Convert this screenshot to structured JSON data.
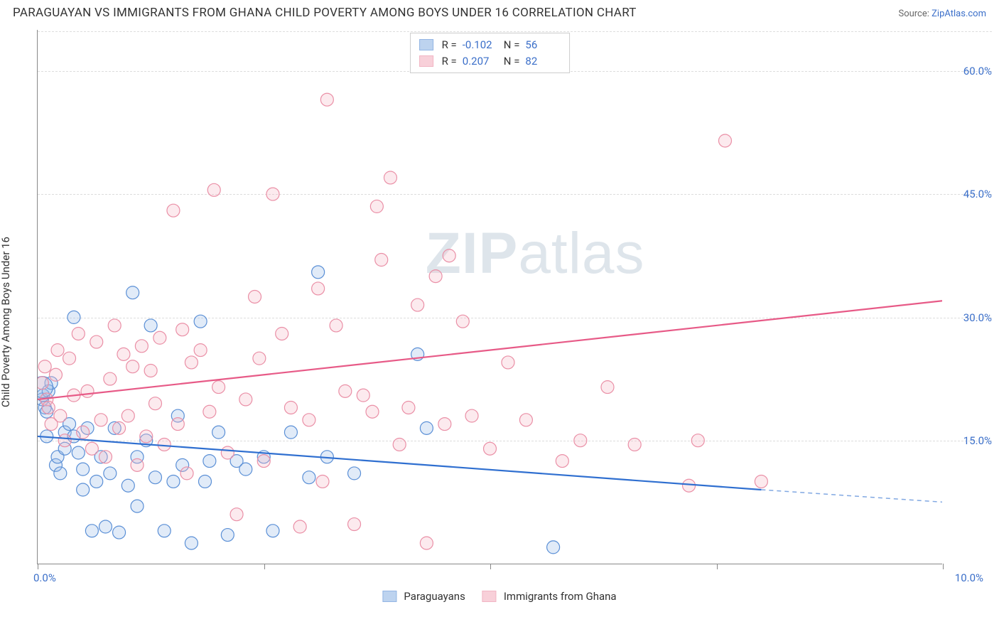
{
  "title": "PARAGUAYAN VS IMMIGRANTS FROM GHANA CHILD POVERTY AMONG BOYS UNDER 16 CORRELATION CHART",
  "source_prefix": "Source: ",
  "source_name": "ZipAtlas.com",
  "y_axis_label": "Child Poverty Among Boys Under 16",
  "watermark_bold": "ZIP",
  "watermark_rest": "atlas",
  "chart": {
    "type": "scatter",
    "xlim": [
      0,
      10
    ],
    "ylim": [
      0,
      65
    ],
    "x_ticks": [
      0,
      2.5,
      5,
      7.5,
      10
    ],
    "x_tick_labels": {
      "0": "0.0%",
      "10": "10.0%"
    },
    "y_ticks": [
      15,
      30,
      45,
      60
    ],
    "y_tick_labels": [
      "15.0%",
      "30.0%",
      "45.0%",
      "60.0%"
    ],
    "grid_color": "#dddddd",
    "axis_color": "#888888",
    "background_color": "#ffffff",
    "marker_radius": 9,
    "marker_stroke_width": 1.2,
    "marker_fill_opacity": 0.3,
    "trend_line_width": 2.2,
    "series": [
      {
        "name": "Paraguayans",
        "color_fill": "#9bbce8",
        "color_stroke": "#5a8fd6",
        "trend_color": "#2f6fd0",
        "R": "-0.102",
        "N": "56",
        "trend": {
          "x1": 0,
          "y1": 15.5,
          "x2": 8.0,
          "y2": 9.0,
          "dashed_x2": 10,
          "dashed_y2": 7.5
        },
        "points": [
          [
            0.05,
            20.0
          ],
          [
            0.06,
            20.5
          ],
          [
            0.08,
            19.0
          ],
          [
            0.1,
            15.5
          ],
          [
            0.1,
            18.5
          ],
          [
            0.12,
            21.0
          ],
          [
            0.15,
            22.0
          ],
          [
            0.2,
            12.0
          ],
          [
            0.22,
            13.0
          ],
          [
            0.25,
            11.0
          ],
          [
            0.3,
            16.0
          ],
          [
            0.3,
            14.0
          ],
          [
            0.35,
            17.0
          ],
          [
            0.4,
            30.0
          ],
          [
            0.4,
            15.5
          ],
          [
            0.45,
            13.5
          ],
          [
            0.5,
            9.0
          ],
          [
            0.5,
            11.5
          ],
          [
            0.55,
            16.5
          ],
          [
            0.6,
            4.0
          ],
          [
            0.65,
            10.0
          ],
          [
            0.7,
            13.0
          ],
          [
            0.75,
            4.5
          ],
          [
            0.8,
            11.0
          ],
          [
            0.85,
            16.5
          ],
          [
            0.9,
            3.8
          ],
          [
            1.0,
            9.5
          ],
          [
            1.05,
            33.0
          ],
          [
            1.1,
            13.0
          ],
          [
            1.1,
            7.0
          ],
          [
            1.2,
            15.0
          ],
          [
            1.25,
            29.0
          ],
          [
            1.3,
            10.5
          ],
          [
            1.4,
            4.0
          ],
          [
            1.5,
            10.0
          ],
          [
            1.55,
            18.0
          ],
          [
            1.6,
            12.0
          ],
          [
            1.7,
            2.5
          ],
          [
            1.8,
            29.5
          ],
          [
            1.85,
            10.0
          ],
          [
            1.9,
            12.5
          ],
          [
            2.0,
            16.0
          ],
          [
            2.1,
            3.5
          ],
          [
            2.2,
            12.5
          ],
          [
            2.3,
            11.5
          ],
          [
            2.5,
            13.0
          ],
          [
            2.6,
            4.0
          ],
          [
            2.8,
            16.0
          ],
          [
            3.0,
            10.5
          ],
          [
            3.1,
            35.5
          ],
          [
            3.2,
            13.0
          ],
          [
            3.5,
            11.0
          ],
          [
            4.2,
            25.5
          ],
          [
            4.3,
            16.5
          ],
          [
            5.7,
            2.0
          ],
          [
            0.05,
            21.5,
            15
          ]
        ]
      },
      {
        "name": "Immigrants from Ghana",
        "color_fill": "#f5b8c6",
        "color_stroke": "#ea8fa6",
        "trend_color": "#e75a87",
        "R": "0.207",
        "N": "82",
        "trend": {
          "x1": 0,
          "y1": 20.0,
          "x2": 10,
          "y2": 32.0
        },
        "points": [
          [
            0.05,
            22.0
          ],
          [
            0.08,
            24.0
          ],
          [
            0.1,
            20.0
          ],
          [
            0.12,
            19.0
          ],
          [
            0.15,
            17.0
          ],
          [
            0.2,
            23.0
          ],
          [
            0.22,
            26.0
          ],
          [
            0.25,
            18.0
          ],
          [
            0.3,
            15.0
          ],
          [
            0.35,
            25.0
          ],
          [
            0.4,
            20.5
          ],
          [
            0.45,
            28.0
          ],
          [
            0.5,
            16.0
          ],
          [
            0.55,
            21.0
          ],
          [
            0.6,
            14.0
          ],
          [
            0.65,
            27.0
          ],
          [
            0.7,
            17.5
          ],
          [
            0.75,
            13.0
          ],
          [
            0.8,
            22.5
          ],
          [
            0.85,
            29.0
          ],
          [
            0.9,
            16.5
          ],
          [
            0.95,
            25.5
          ],
          [
            1.0,
            18.0
          ],
          [
            1.05,
            24.0
          ],
          [
            1.1,
            12.0
          ],
          [
            1.15,
            26.5
          ],
          [
            1.2,
            15.5
          ],
          [
            1.25,
            23.5
          ],
          [
            1.3,
            19.5
          ],
          [
            1.35,
            27.5
          ],
          [
            1.4,
            14.5
          ],
          [
            1.5,
            43.0
          ],
          [
            1.55,
            17.0
          ],
          [
            1.6,
            28.5
          ],
          [
            1.65,
            11.0
          ],
          [
            1.7,
            24.5
          ],
          [
            1.8,
            26.0
          ],
          [
            1.9,
            18.5
          ],
          [
            1.95,
            45.5
          ],
          [
            2.0,
            21.5
          ],
          [
            2.1,
            13.5
          ],
          [
            2.2,
            6.0
          ],
          [
            2.3,
            20.0
          ],
          [
            2.4,
            32.5
          ],
          [
            2.45,
            25.0
          ],
          [
            2.5,
            12.5
          ],
          [
            2.6,
            45.0
          ],
          [
            2.7,
            28.0
          ],
          [
            2.8,
            19.0
          ],
          [
            2.9,
            4.5
          ],
          [
            3.0,
            17.5
          ],
          [
            3.1,
            33.5
          ],
          [
            3.15,
            10.0
          ],
          [
            3.2,
            56.5
          ],
          [
            3.3,
            29.0
          ],
          [
            3.4,
            21.0
          ],
          [
            3.5,
            4.8
          ],
          [
            3.6,
            20.5
          ],
          [
            3.7,
            18.5
          ],
          [
            3.75,
            43.5
          ],
          [
            3.8,
            37.0
          ],
          [
            3.9,
            47.0
          ],
          [
            4.0,
            14.5
          ],
          [
            4.1,
            19.0
          ],
          [
            4.2,
            31.5
          ],
          [
            4.3,
            2.5
          ],
          [
            4.4,
            35.0
          ],
          [
            4.5,
            17.0
          ],
          [
            4.55,
            37.5
          ],
          [
            4.7,
            29.5
          ],
          [
            4.8,
            18.0
          ],
          [
            5.0,
            14.0
          ],
          [
            5.2,
            24.5
          ],
          [
            5.4,
            17.5
          ],
          [
            5.8,
            12.5
          ],
          [
            6.0,
            15.0
          ],
          [
            6.3,
            21.5
          ],
          [
            6.6,
            14.5
          ],
          [
            7.2,
            9.5
          ],
          [
            7.3,
            15.0
          ],
          [
            7.6,
            51.5
          ],
          [
            8.0,
            10.0
          ]
        ]
      }
    ]
  },
  "bottom_legend": [
    {
      "label": "Paraguayans",
      "fill": "#9bbce8",
      "stroke": "#5a8fd6"
    },
    {
      "label": "Immigrants from Ghana",
      "fill": "#f5b8c6",
      "stroke": "#ea8fa6"
    }
  ]
}
